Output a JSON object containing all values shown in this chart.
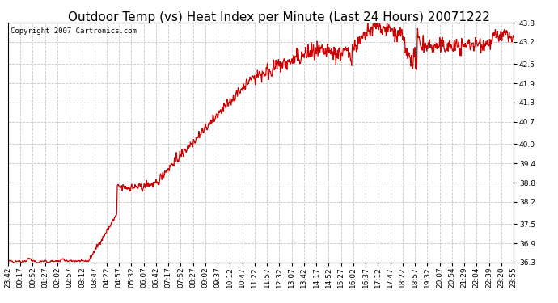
{
  "title": "Outdoor Temp (vs) Heat Index per Minute (Last 24 Hours) 20071222",
  "copyright": "Copyright 2007 Cartronics.com",
  "line_color": "#cc0000",
  "background_color": "#ffffff",
  "plot_bg_color": "#ffffff",
  "ylim": [
    36.3,
    43.8
  ],
  "yticks": [
    36.3,
    36.9,
    37.5,
    38.2,
    38.8,
    39.4,
    40.0,
    40.7,
    41.3,
    41.9,
    42.5,
    43.2,
    43.8
  ],
  "xtick_labels": [
    "23:42",
    "00:17",
    "00:52",
    "01:27",
    "02:02",
    "02:57",
    "03:12",
    "03:47",
    "04:22",
    "04:57",
    "05:32",
    "06:07",
    "06:42",
    "07:17",
    "07:52",
    "08:27",
    "09:02",
    "09:37",
    "10:12",
    "10:47",
    "11:22",
    "11:57",
    "12:32",
    "13:07",
    "13:42",
    "14:17",
    "14:52",
    "15:27",
    "16:02",
    "16:37",
    "17:12",
    "17:47",
    "18:22",
    "18:57",
    "19:32",
    "20:07",
    "20:54",
    "21:29",
    "22:04",
    "22:39",
    "23:20",
    "23:55"
  ],
  "grid_color": "#c8c8c8",
  "title_fontsize": 11,
  "tick_fontsize": 6.5,
  "copyright_fontsize": 6.5,
  "line_width": 0.9
}
